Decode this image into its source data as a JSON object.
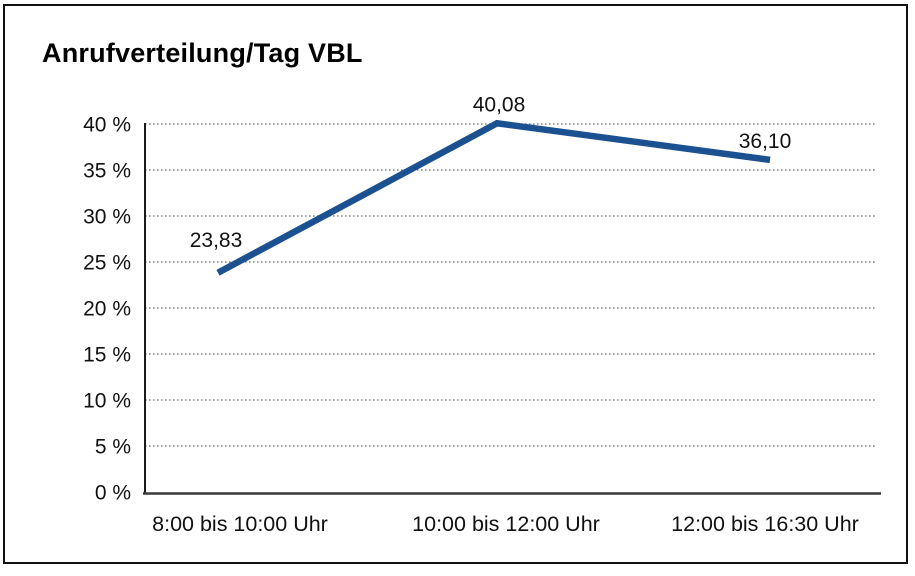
{
  "title": "Anrufverteilung/Tag VBL",
  "chart_data": {
    "type": "line",
    "title": "Anrufverteilung/Tag VBL",
    "categories": [
      "8:00 bis 10:00 Uhr",
      "10:00 bis 12:00 Uhr",
      "12:00 bis 16:30 Uhr"
    ],
    "series": [
      {
        "name": "Anrufverteilung",
        "values": [
          23.83,
          40.08,
          36.1
        ],
        "point_labels": [
          "23,83",
          "40,08",
          "36,10"
        ]
      }
    ],
    "xlabel": "",
    "ylabel": "",
    "ylim": [
      0,
      40
    ],
    "ytick_step": 5,
    "ytick_labels": [
      "0 %",
      "5 %",
      "10 %",
      "15 %",
      "20 %",
      "25 %",
      "30 %",
      "35 %",
      "40 %"
    ],
    "grid": "horizontal-dotted",
    "legend_position": "none",
    "colors": {
      "line": "#1c5191",
      "text": "#111111",
      "gridline": "#6b6b6b",
      "axis": "#1a1a1a",
      "baseline": "#3a3a3a",
      "background": "#ffffff",
      "frame_border": "#111111"
    }
  }
}
